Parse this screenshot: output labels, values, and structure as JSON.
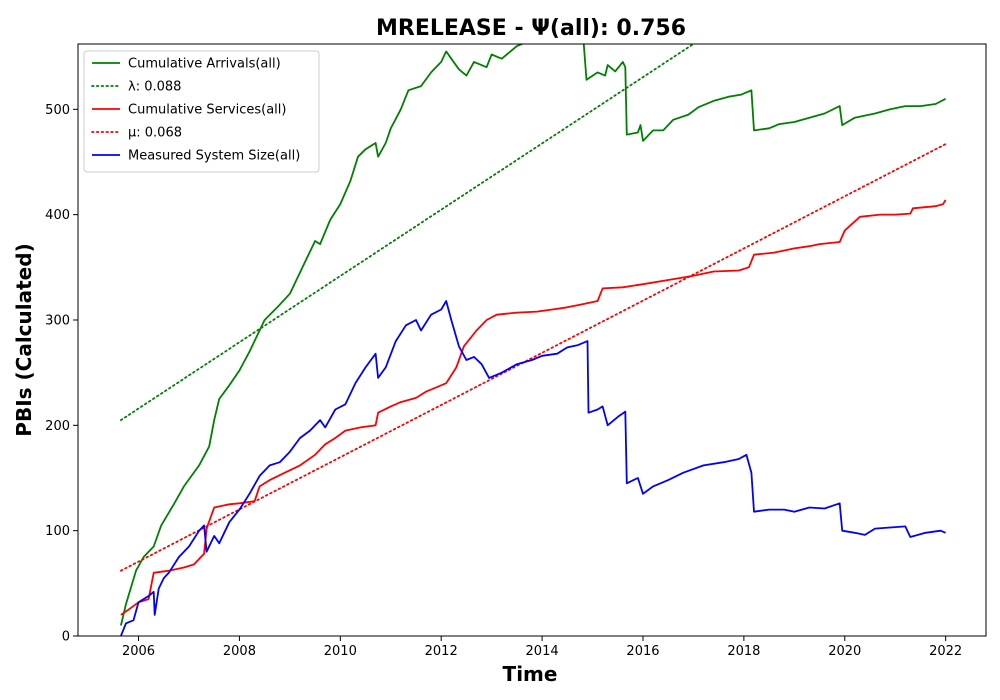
{
  "chart_data": {
    "type": "line",
    "title": "MRELEASE -  Ψ(all): 0.756",
    "xlabel": "Time",
    "ylabel": "PBIs (Calculated)",
    "xlim": [
      2004.8,
      2022.8
    ],
    "ylim": [
      0,
      562
    ],
    "xticks": [
      2006,
      2008,
      2010,
      2012,
      2014,
      2016,
      2018,
      2020,
      2022
    ],
    "yticks": [
      0,
      100,
      200,
      300,
      400,
      500
    ],
    "grid": false,
    "legend_position": "top-left",
    "series": [
      {
        "name": "Cumulative Arrivals(all)",
        "color": "#008000",
        "style": "solid",
        "points": [
          [
            2005.65,
            10
          ],
          [
            2005.75,
            30
          ],
          [
            2005.95,
            62
          ],
          [
            2006.1,
            75
          ],
          [
            2006.3,
            85
          ],
          [
            2006.45,
            105
          ],
          [
            2006.7,
            125
          ],
          [
            2006.9,
            142
          ],
          [
            2007.2,
            162
          ],
          [
            2007.4,
            180
          ],
          [
            2007.5,
            205
          ],
          [
            2007.6,
            225
          ],
          [
            2007.8,
            238
          ],
          [
            2008.0,
            252
          ],
          [
            2008.2,
            270
          ],
          [
            2008.5,
            300
          ],
          [
            2008.75,
            312
          ],
          [
            2009.0,
            325
          ],
          [
            2009.3,
            355
          ],
          [
            2009.5,
            375
          ],
          [
            2009.6,
            372
          ],
          [
            2009.8,
            395
          ],
          [
            2010.0,
            410
          ],
          [
            2010.2,
            432
          ],
          [
            2010.35,
            455
          ],
          [
            2010.5,
            462
          ],
          [
            2010.7,
            468
          ],
          [
            2010.75,
            455
          ],
          [
            2010.9,
            468
          ],
          [
            2011.0,
            482
          ],
          [
            2011.2,
            500
          ],
          [
            2011.35,
            518
          ],
          [
            2011.6,
            522
          ],
          [
            2011.8,
            535
          ],
          [
            2012.0,
            545
          ],
          [
            2012.1,
            555
          ],
          [
            2012.2,
            548
          ],
          [
            2012.35,
            538
          ],
          [
            2012.5,
            532
          ],
          [
            2012.65,
            545
          ],
          [
            2012.9,
            540
          ],
          [
            2013.0,
            552
          ],
          [
            2013.2,
            548
          ],
          [
            2013.5,
            560
          ],
          [
            2013.6,
            562
          ],
          [
            2014.0,
            570
          ],
          [
            2014.5,
            580
          ],
          [
            2014.82,
            565
          ],
          [
            2014.88,
            528
          ],
          [
            2015.1,
            535
          ],
          [
            2015.25,
            532
          ],
          [
            2015.3,
            542
          ],
          [
            2015.45,
            536
          ],
          [
            2015.6,
            545
          ],
          [
            2015.65,
            540
          ],
          [
            2015.68,
            476
          ],
          [
            2015.9,
            478
          ],
          [
            2015.95,
            485
          ],
          [
            2016.0,
            470
          ],
          [
            2016.2,
            480
          ],
          [
            2016.4,
            480
          ],
          [
            2016.6,
            490
          ],
          [
            2016.9,
            495
          ],
          [
            2017.1,
            502
          ],
          [
            2017.4,
            508
          ],
          [
            2017.7,
            512
          ],
          [
            2017.95,
            514
          ],
          [
            2018.15,
            518
          ],
          [
            2018.2,
            480
          ],
          [
            2018.5,
            482
          ],
          [
            2018.7,
            486
          ],
          [
            2019.0,
            488
          ],
          [
            2019.3,
            492
          ],
          [
            2019.6,
            496
          ],
          [
            2019.9,
            503
          ],
          [
            2019.95,
            485
          ],
          [
            2020.2,
            492
          ],
          [
            2020.6,
            496
          ],
          [
            2020.9,
            500
          ],
          [
            2021.2,
            503
          ],
          [
            2021.5,
            503
          ],
          [
            2021.8,
            505
          ],
          [
            2022.0,
            510
          ]
        ]
      },
      {
        "name": "λ: 0.088",
        "color": "#008000",
        "style": "dotted",
        "points": [
          [
            2005.65,
            205
          ],
          [
            2017.0,
            562
          ]
        ]
      },
      {
        "name": "Cumulative Services(all)",
        "color": "#ff0000",
        "style": "solid",
        "points": [
          [
            2005.65,
            20
          ],
          [
            2005.8,
            25
          ],
          [
            2006.0,
            32
          ],
          [
            2006.2,
            35
          ],
          [
            2006.3,
            60
          ],
          [
            2006.6,
            62
          ],
          [
            2006.9,
            65
          ],
          [
            2007.1,
            68
          ],
          [
            2007.3,
            78
          ],
          [
            2007.35,
            102
          ],
          [
            2007.5,
            122
          ],
          [
            2007.8,
            125
          ],
          [
            2008.0,
            126
          ],
          [
            2008.3,
            128
          ],
          [
            2008.4,
            142
          ],
          [
            2008.6,
            148
          ],
          [
            2008.9,
            155
          ],
          [
            2009.2,
            162
          ],
          [
            2009.5,
            172
          ],
          [
            2009.7,
            182
          ],
          [
            2009.9,
            188
          ],
          [
            2010.1,
            195
          ],
          [
            2010.4,
            198
          ],
          [
            2010.7,
            200
          ],
          [
            2010.75,
            212
          ],
          [
            2011.0,
            218
          ],
          [
            2011.2,
            222
          ],
          [
            2011.5,
            226
          ],
          [
            2011.7,
            232
          ],
          [
            2011.9,
            236
          ],
          [
            2012.1,
            240
          ],
          [
            2012.3,
            255
          ],
          [
            2012.45,
            275
          ],
          [
            2012.7,
            290
          ],
          [
            2012.9,
            300
          ],
          [
            2013.1,
            305
          ],
          [
            2013.5,
            307
          ],
          [
            2013.9,
            308
          ],
          [
            2014.2,
            310
          ],
          [
            2014.5,
            312
          ],
          [
            2014.8,
            315
          ],
          [
            2015.1,
            318
          ],
          [
            2015.2,
            330
          ],
          [
            2015.6,
            331
          ],
          [
            2016.0,
            334
          ],
          [
            2016.5,
            338
          ],
          [
            2017.0,
            342
          ],
          [
            2017.4,
            346
          ],
          [
            2017.9,
            347
          ],
          [
            2018.1,
            350
          ],
          [
            2018.2,
            362
          ],
          [
            2018.6,
            364
          ],
          [
            2019.0,
            368
          ],
          [
            2019.3,
            370
          ],
          [
            2019.5,
            372
          ],
          [
            2019.9,
            374
          ],
          [
            2020.0,
            385
          ],
          [
            2020.3,
            398
          ],
          [
            2020.7,
            400
          ],
          [
            2021.0,
            400
          ],
          [
            2021.3,
            401
          ],
          [
            2021.35,
            406
          ],
          [
            2021.8,
            408
          ],
          [
            2021.95,
            410
          ],
          [
            2022.0,
            414
          ]
        ]
      },
      {
        "name": "μ: 0.068",
        "color": "#ff0000",
        "style": "dotted",
        "points": [
          [
            2005.65,
            62
          ],
          [
            2022.0,
            467
          ]
        ]
      },
      {
        "name": "Measured System Size(all)",
        "color": "#0000ff",
        "style": "solid",
        "points": [
          [
            2005.65,
            0
          ],
          [
            2005.75,
            12
          ],
          [
            2005.9,
            15
          ],
          [
            2006.0,
            32
          ],
          [
            2006.1,
            35
          ],
          [
            2006.2,
            38
          ],
          [
            2006.3,
            42
          ],
          [
            2006.32,
            20
          ],
          [
            2006.4,
            45
          ],
          [
            2006.5,
            55
          ],
          [
            2006.6,
            60
          ],
          [
            2006.8,
            75
          ],
          [
            2007.0,
            85
          ],
          [
            2007.2,
            100
          ],
          [
            2007.3,
            105
          ],
          [
            2007.35,
            80
          ],
          [
            2007.5,
            95
          ],
          [
            2007.6,
            88
          ],
          [
            2007.8,
            108
          ],
          [
            2008.0,
            120
          ],
          [
            2008.2,
            135
          ],
          [
            2008.4,
            152
          ],
          [
            2008.6,
            162
          ],
          [
            2008.8,
            165
          ],
          [
            2009.0,
            175
          ],
          [
            2009.2,
            188
          ],
          [
            2009.4,
            195
          ],
          [
            2009.6,
            205
          ],
          [
            2009.7,
            198
          ],
          [
            2009.9,
            215
          ],
          [
            2010.1,
            220
          ],
          [
            2010.3,
            240
          ],
          [
            2010.5,
            255
          ],
          [
            2010.7,
            268
          ],
          [
            2010.75,
            245
          ],
          [
            2010.9,
            255
          ],
          [
            2011.1,
            280
          ],
          [
            2011.3,
            295
          ],
          [
            2011.5,
            300
          ],
          [
            2011.6,
            290
          ],
          [
            2011.8,
            305
          ],
          [
            2012.0,
            310
          ],
          [
            2012.1,
            318
          ],
          [
            2012.2,
            300
          ],
          [
            2012.35,
            275
          ],
          [
            2012.5,
            262
          ],
          [
            2012.65,
            265
          ],
          [
            2012.8,
            258
          ],
          [
            2012.95,
            245
          ],
          [
            2013.2,
            250
          ],
          [
            2013.5,
            258
          ],
          [
            2013.8,
            262
          ],
          [
            2014.0,
            266
          ],
          [
            2014.3,
            268
          ],
          [
            2014.5,
            274
          ],
          [
            2014.7,
            276
          ],
          [
            2014.9,
            280
          ],
          [
            2014.92,
            212
          ],
          [
            2015.1,
            215
          ],
          [
            2015.2,
            218
          ],
          [
            2015.3,
            200
          ],
          [
            2015.5,
            208
          ],
          [
            2015.65,
            213
          ],
          [
            2015.68,
            145
          ],
          [
            2015.9,
            150
          ],
          [
            2016.0,
            135
          ],
          [
            2016.2,
            142
          ],
          [
            2016.5,
            148
          ],
          [
            2016.8,
            155
          ],
          [
            2017.2,
            162
          ],
          [
            2017.6,
            165
          ],
          [
            2017.9,
            168
          ],
          [
            2018.05,
            172
          ],
          [
            2018.15,
            155
          ],
          [
            2018.2,
            118
          ],
          [
            2018.5,
            120
          ],
          [
            2018.8,
            120
          ],
          [
            2019.0,
            118
          ],
          [
            2019.3,
            122
          ],
          [
            2019.6,
            121
          ],
          [
            2019.9,
            126
          ],
          [
            2019.95,
            100
          ],
          [
            2020.2,
            98
          ],
          [
            2020.4,
            96
          ],
          [
            2020.6,
            102
          ],
          [
            2020.9,
            103
          ],
          [
            2021.2,
            104
          ],
          [
            2021.3,
            94
          ],
          [
            2021.6,
            98
          ],
          [
            2021.9,
            100
          ],
          [
            2022.0,
            98
          ]
        ]
      }
    ]
  }
}
